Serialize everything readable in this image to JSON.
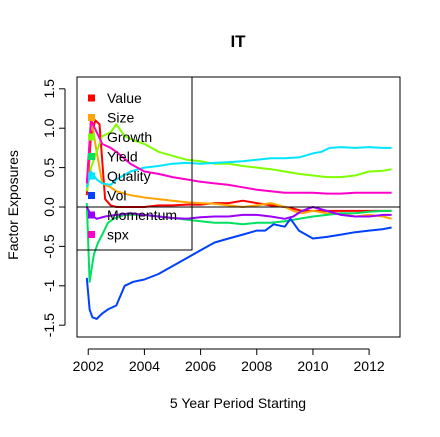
{
  "chart_data": {
    "type": "line",
    "title": "IT",
    "xlabel": "5 Year Period Starting",
    "ylabel": "Factor Exposures",
    "xlim": [
      2001.6,
      2013.1
    ],
    "ylim": [
      -1.65,
      1.65
    ],
    "xticks": [
      2002,
      2004,
      2006,
      2008,
      2010,
      2012
    ],
    "xtick_labels": [
      "2002",
      "2004",
      "2006",
      "2008",
      "2010",
      "2012"
    ],
    "yticks": [
      -1.5,
      -1.0,
      -0.5,
      0.0,
      0.5,
      1.0,
      1.5
    ],
    "ytick_labels": [
      "-1.5",
      "-1",
      "-0.5",
      "0.0",
      "0.5",
      "1.0",
      "1.5"
    ],
    "hline": 0,
    "legend_position": "top-left",
    "series": [
      {
        "name": "Value",
        "color": "#ff0000",
        "x": [
          2001.95,
          2002.1,
          2002.25,
          2002.4,
          2002.6,
          2002.8,
          2003,
          2003.5,
          2004,
          2004.5,
          2005,
          2005.5,
          2006,
          2006.5,
          2007,
          2007.5,
          2008,
          2008.5,
          2009,
          2009.3,
          2009.6,
          2010,
          2010.5,
          2011,
          2011.5,
          2012,
          2012.5,
          2012.8
        ],
        "y": [
          0.15,
          0.9,
          1.1,
          1.05,
          0.1,
          0.02,
          0.0,
          0.0,
          0.0,
          0.02,
          0.02,
          0.03,
          0.03,
          0.05,
          0.05,
          0.08,
          0.05,
          0.02,
          0.0,
          -0.02,
          -0.05,
          -0.05,
          -0.05,
          -0.05,
          -0.05,
          -0.05,
          -0.05,
          -0.05
        ]
      },
      {
        "name": "Size",
        "color": "#ffa500",
        "x": [
          2001.95,
          2002.1,
          2002.25,
          2002.5,
          2002.8,
          2003,
          2003.5,
          2004,
          2004.5,
          2005,
          2005.5,
          2006,
          2006.5,
          2007,
          2007.5,
          2008,
          2008.5,
          2009,
          2009.3,
          2009.6,
          2010,
          2010.5,
          2011,
          2011.5,
          2012,
          2012.5,
          2012.8
        ],
        "y": [
          0.2,
          1.15,
          0.8,
          0.3,
          0.25,
          0.2,
          0.15,
          0.12,
          0.1,
          0.08,
          0.06,
          0.05,
          0.04,
          0.02,
          0.0,
          0.02,
          0.05,
          0.0,
          -0.05,
          -0.08,
          -0.05,
          -0.08,
          -0.08,
          -0.12,
          -0.1,
          -0.12,
          -0.15
        ]
      },
      {
        "name": "Growth",
        "color": "#80ff00",
        "x": [
          2001.95,
          2002.1,
          2002.3,
          2002.5,
          2002.8,
          2003,
          2003.3,
          2003.6,
          2004,
          2004.5,
          2005,
          2005.5,
          2006,
          2006.5,
          2007,
          2007.5,
          2008,
          2008.5,
          2009,
          2009.5,
          2010,
          2010.5,
          2011,
          2011.5,
          2012,
          2012.5,
          2012.8
        ],
        "y": [
          0.2,
          0.5,
          0.7,
          0.9,
          0.95,
          1.05,
          0.9,
          0.85,
          0.8,
          0.7,
          0.65,
          0.6,
          0.58,
          0.55,
          0.55,
          0.52,
          0.5,
          0.48,
          0.45,
          0.42,
          0.4,
          0.38,
          0.38,
          0.4,
          0.45,
          0.46,
          0.48
        ]
      },
      {
        "name": "Yield",
        "color": "#00e060",
        "x": [
          2001.95,
          2002.05,
          2002.2,
          2002.35,
          2002.5,
          2002.7,
          2002.9,
          2003.1,
          2003.3,
          2003.6,
          2004,
          2004.5,
          2005,
          2005.5,
          2006,
          2006.5,
          2007,
          2007.5,
          2008,
          2008.5,
          2009,
          2009.5,
          2010,
          2010.5,
          2011,
          2011.5,
          2012,
          2012.5,
          2012.8
        ],
        "y": [
          0.05,
          -0.95,
          -0.6,
          -0.45,
          -0.35,
          -0.2,
          -0.15,
          -0.12,
          -0.1,
          -0.1,
          -0.1,
          -0.12,
          -0.14,
          -0.16,
          -0.18,
          -0.2,
          -0.2,
          -0.22,
          -0.2,
          -0.2,
          -0.18,
          -0.15,
          -0.12,
          -0.1,
          -0.08,
          -0.08,
          -0.06,
          -0.05,
          -0.05
        ]
      },
      {
        "name": "Quality",
        "color": "#00e5ff",
        "x": [
          2001.95,
          2002.1,
          2002.3,
          2002.5,
          2002.8,
          2003,
          2003.5,
          2004,
          2004.5,
          2005,
          2005.5,
          2006,
          2006.5,
          2007,
          2007.5,
          2008,
          2008.5,
          2009,
          2009.5,
          2010,
          2010.3,
          2010.6,
          2011,
          2011.5,
          2012,
          2012.5,
          2012.8
        ],
        "y": [
          0.25,
          0.45,
          0.35,
          0.3,
          0.28,
          0.35,
          0.45,
          0.5,
          0.52,
          0.55,
          0.56,
          0.55,
          0.56,
          0.57,
          0.58,
          0.6,
          0.62,
          0.62,
          0.63,
          0.68,
          0.7,
          0.75,
          0.76,
          0.75,
          0.76,
          0.75,
          0.75
        ]
      },
      {
        "name": "Vol",
        "color": "#0040ff",
        "x": [
          2001.95,
          2002.05,
          2002.15,
          2002.3,
          2002.5,
          2002.7,
          2003,
          2003.3,
          2003.6,
          2004,
          2004.5,
          2005,
          2005.5,
          2006,
          2006.5,
          2007,
          2007.5,
          2008,
          2008.3,
          2008.6,
          2009,
          2009.2,
          2009.5,
          2010,
          2010.5,
          2011,
          2011.5,
          2012,
          2012.5,
          2012.8
        ],
        "y": [
          -0.9,
          -1.3,
          -1.4,
          -1.42,
          -1.35,
          -1.3,
          -1.25,
          -1.0,
          -0.95,
          -0.92,
          -0.85,
          -0.75,
          -0.65,
          -0.55,
          -0.45,
          -0.4,
          -0.35,
          -0.3,
          -0.3,
          -0.22,
          -0.25,
          -0.15,
          -0.3,
          -0.4,
          -0.38,
          -0.35,
          -0.32,
          -0.3,
          -0.28,
          -0.26
        ]
      },
      {
        "name": "Momentum",
        "color": "#9900ff",
        "x": [
          2001.95,
          2002.1,
          2002.3,
          2002.6,
          2003,
          2003.5,
          2004,
          2004.5,
          2005,
          2005.5,
          2006,
          2006.5,
          2007,
          2007.5,
          2008,
          2008.5,
          2009,
          2009.3,
          2009.6,
          2010,
          2010.5,
          2011,
          2011.5,
          2012,
          2012.5,
          2012.8
        ],
        "y": [
          0.0,
          -0.1,
          -0.15,
          -0.12,
          -0.1,
          -0.08,
          -0.1,
          -0.12,
          -0.14,
          -0.15,
          -0.13,
          -0.12,
          -0.12,
          -0.1,
          -0.1,
          -0.12,
          -0.15,
          -0.12,
          -0.05,
          0.0,
          -0.05,
          -0.1,
          -0.12,
          -0.12,
          -0.1,
          -0.1
        ]
      },
      {
        "name": "spx",
        "color": "#ff00c8",
        "x": [
          2001.95,
          2002.1,
          2002.3,
          2002.5,
          2002.8,
          2003,
          2003.5,
          2004,
          2004.5,
          2005,
          2005.5,
          2006,
          2006.5,
          2007,
          2007.5,
          2008,
          2008.5,
          2009,
          2009.5,
          2010,
          2010.5,
          2011,
          2011.5,
          2012,
          2012.5,
          2012.8
        ],
        "y": [
          0.3,
          1.1,
          0.95,
          0.8,
          0.75,
          0.7,
          0.55,
          0.45,
          0.42,
          0.38,
          0.35,
          0.32,
          0.3,
          0.28,
          0.25,
          0.22,
          0.2,
          0.18,
          0.18,
          0.18,
          0.17,
          0.17,
          0.18,
          0.18,
          0.18,
          0.18
        ]
      }
    ]
  }
}
